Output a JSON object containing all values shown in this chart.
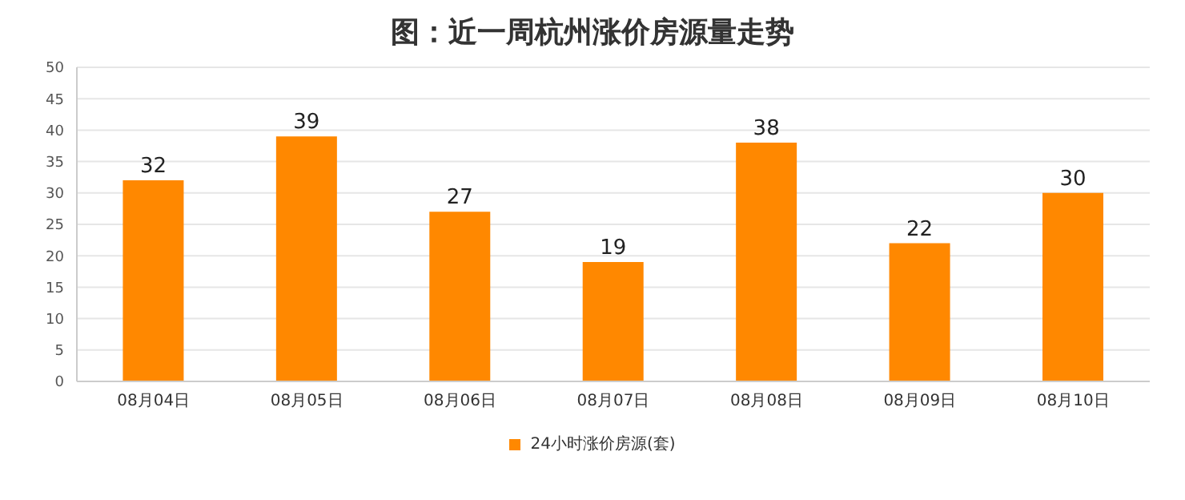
{
  "chart_data": {
    "type": "bar",
    "title": "图：近一周杭州涨价房源量走势",
    "categories": [
      "08月04日",
      "08月05日",
      "08月06日",
      "08月07日",
      "08月08日",
      "08月09日",
      "08月10日"
    ],
    "series": [
      {
        "name": "24小时涨价房源(套)",
        "color": "#ff8800",
        "values": [
          32,
          39,
          27,
          19,
          38,
          22,
          30
        ]
      }
    ],
    "ylim": [
      0,
      50
    ],
    "yticks": [
      0,
      5,
      10,
      15,
      20,
      25,
      30,
      35,
      40,
      45,
      50
    ],
    "grid": "y",
    "legend": "bottom",
    "data_labels": true
  }
}
